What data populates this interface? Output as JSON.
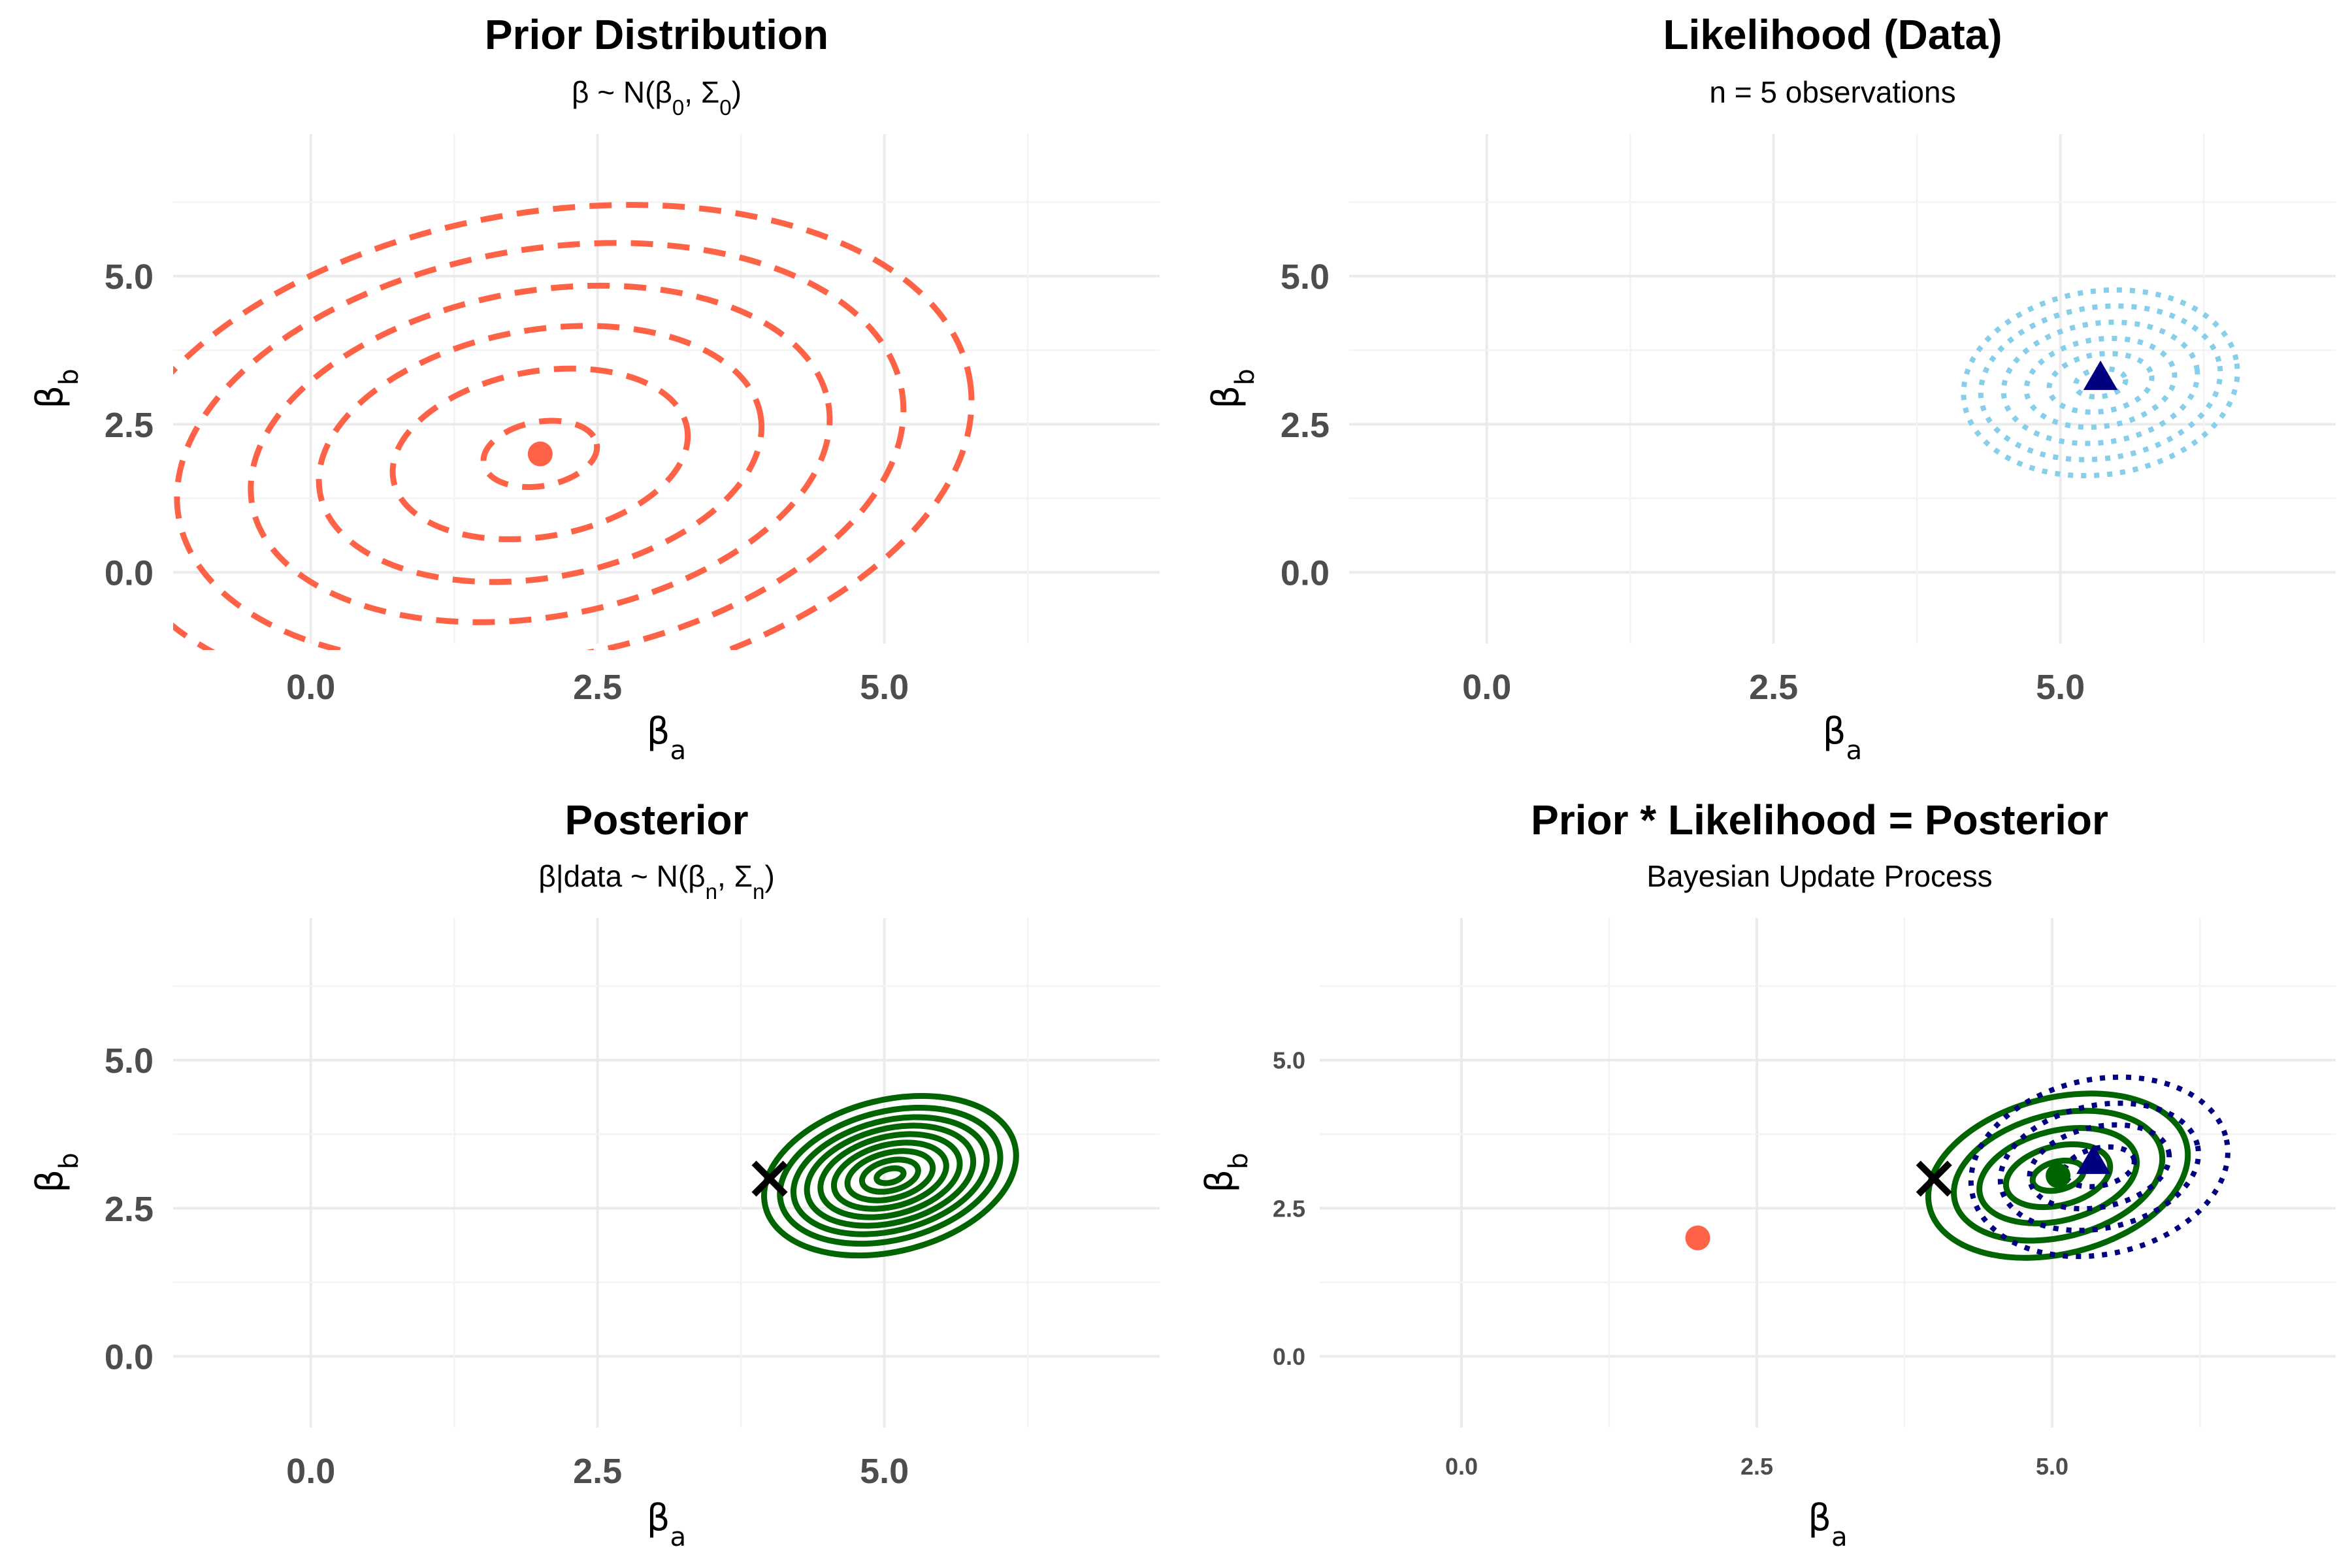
{
  "chart_data": [
    {
      "id": "prior",
      "type": "contour",
      "title": "Prior Distribution",
      "subtitle": "β ~ N(β₀, Σ₀)",
      "xlabel": "βₐ",
      "ylabel": "β_b",
      "xlim": [
        -1.2,
        7.4
      ],
      "ylim": [
        -1.2,
        7.4
      ],
      "xticks": [
        0.0,
        2.5,
        5.0
      ],
      "yticks": [
        0.0,
        2.5,
        5.0
      ],
      "xtick_labels": [
        "0.0",
        "2.5",
        "5.0"
      ],
      "ytick_labels": [
        "0.0",
        "2.5",
        "5.0"
      ],
      "layers": [
        {
          "kind": "contour",
          "style": "dashed",
          "color": "#FF6347",
          "center": [
            2.0,
            2.0
          ],
          "semi_major": [
            0.5,
            1.3,
            1.95,
            2.55,
            3.2,
            3.8
          ],
          "semi_minor": [
            0.28,
            0.72,
            1.08,
            1.42,
            1.78,
            2.1
          ],
          "angle_deg": 10
        },
        {
          "kind": "point",
          "shape": "circle",
          "color": "#FF6347",
          "x": 2.0,
          "y": 2.0
        }
      ]
    },
    {
      "id": "likelihood",
      "type": "contour",
      "title": "Likelihood (Data)",
      "subtitle": "n = 5 observations",
      "xlabel": "βₐ",
      "ylabel": "β_b",
      "xlim": [
        -1.2,
        7.4
      ],
      "ylim": [
        -1.2,
        7.4
      ],
      "xticks": [
        0.0,
        2.5,
        5.0
      ],
      "yticks": [
        0.0,
        2.5,
        5.0
      ],
      "xtick_labels": [
        "0.0",
        "2.5",
        "5.0"
      ],
      "ytick_labels": [
        "0.0",
        "2.5",
        "5.0"
      ],
      "layers": [
        {
          "kind": "contour",
          "style": "dotted",
          "color": "#87CEEB",
          "center": [
            5.35,
            3.2
          ],
          "semi_major": [
            0.22,
            0.45,
            0.65,
            0.85,
            1.05,
            1.2
          ],
          "semi_minor": [
            0.12,
            0.25,
            0.38,
            0.52,
            0.66,
            0.8
          ],
          "angle_deg": 8
        },
        {
          "kind": "point",
          "shape": "triangle",
          "color": "#000080",
          "x": 5.35,
          "y": 3.3
        }
      ]
    },
    {
      "id": "posterior",
      "type": "contour",
      "title": "Posterior",
      "subtitle": "β|data ~ N(βₙ, Σₙ)",
      "xlabel": "βₐ",
      "ylabel": "β_b",
      "xlim": [
        -1.2,
        7.4
      ],
      "ylim": [
        -1.2,
        7.4
      ],
      "xticks": [
        0.0,
        2.5,
        5.0
      ],
      "yticks": [
        0.0,
        2.5,
        5.0
      ],
      "xtick_labels": [
        "0.0",
        "2.5",
        "5.0"
      ],
      "ytick_labels": [
        "0.0",
        "2.5",
        "5.0"
      ],
      "layers": [
        {
          "kind": "contour",
          "style": "solid",
          "color": "#006400",
          "center": [
            5.05,
            3.05
          ],
          "semi_major": [
            0.12,
            0.25,
            0.38,
            0.5,
            0.62,
            0.74,
            0.86,
            0.98,
            1.12
          ],
          "semi_minor": [
            0.06,
            0.13,
            0.2,
            0.27,
            0.34,
            0.41,
            0.48,
            0.56,
            0.66
          ],
          "angle_deg": 14
        },
        {
          "kind": "point",
          "shape": "cross",
          "color": "#000000",
          "x": 4.0,
          "y": 3.0
        }
      ]
    },
    {
      "id": "combined",
      "type": "contour",
      "title": "Prior * Likelihood = Posterior",
      "subtitle": "Bayesian Update Process",
      "xlabel": "βₐ",
      "ylabel": "β_b",
      "xlim": [
        -1.2,
        7.4
      ],
      "ylim": [
        -1.2,
        7.4
      ],
      "xticks": [
        0.0,
        2.5,
        5.0
      ],
      "yticks": [
        0.0,
        2.5,
        5.0
      ],
      "xtick_labels": [
        "0.0",
        "2.5",
        "5.0"
      ],
      "ytick_labels": [
        "0.0",
        "2.5",
        "5.0"
      ],
      "small_ticks": true,
      "layers": [
        {
          "kind": "contour",
          "style": "solid",
          "color": "#006400",
          "center": [
            5.05,
            3.05
          ],
          "semi_major": [
            0.22,
            0.45,
            0.68,
            0.9,
            1.12
          ],
          "semi_minor": [
            0.12,
            0.25,
            0.38,
            0.52,
            0.66
          ],
          "angle_deg": 14
        },
        {
          "kind": "contour",
          "style": "dotted",
          "color": "#000080",
          "center": [
            5.4,
            3.2
          ],
          "semi_major": [
            0.3,
            0.6,
            0.85,
            1.1
          ],
          "semi_minor": [
            0.16,
            0.34,
            0.52,
            0.74
          ],
          "angle_deg": 12
        },
        {
          "kind": "point",
          "shape": "circle",
          "color": "#FF6347",
          "x": 2.0,
          "y": 2.0
        },
        {
          "kind": "point",
          "shape": "circle",
          "color": "#006400",
          "x": 5.05,
          "y": 3.05
        },
        {
          "kind": "point",
          "shape": "triangle",
          "color": "#000080",
          "x": 5.35,
          "y": 3.3
        },
        {
          "kind": "point",
          "shape": "cross",
          "color": "#000000",
          "x": 4.0,
          "y": 3.0
        }
      ]
    }
  ]
}
